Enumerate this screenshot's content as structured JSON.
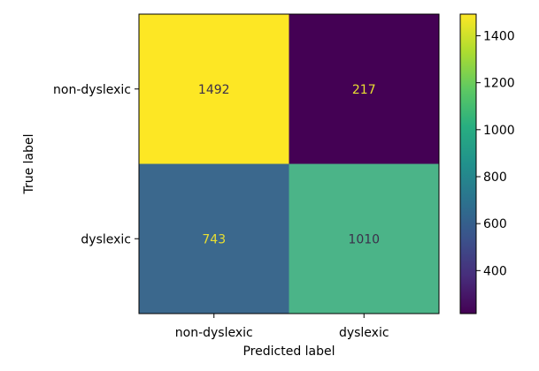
{
  "chart_data": {
    "type": "heatmap",
    "title": "",
    "xlabel": "Predicted label",
    "ylabel": "True label",
    "x_categories": [
      "non-dyslexic",
      "dyslexic"
    ],
    "y_categories": [
      "non-dyslexic",
      "dyslexic"
    ],
    "values": [
      [
        1492,
        217
      ],
      [
        743,
        1010
      ]
    ],
    "cell_labels": [
      [
        "1492",
        "217"
      ],
      [
        "743",
        "1010"
      ]
    ],
    "colormap": "viridis",
    "colorbar": {
      "range": [
        217,
        1492
      ],
      "ticks": [
        400,
        600,
        800,
        1000,
        1200,
        1400
      ],
      "tick_labels": [
        "400",
        "600",
        "800",
        "1000",
        "1200",
        "1400"
      ]
    },
    "colors": {
      "cell_00": "#fde724",
      "cell_01": "#440154",
      "cell_10": "#3b688d",
      "cell_11": "#4bb488",
      "text_dark": "#3b2f4a",
      "text_light": "#e9df31"
    },
    "grid": false
  }
}
